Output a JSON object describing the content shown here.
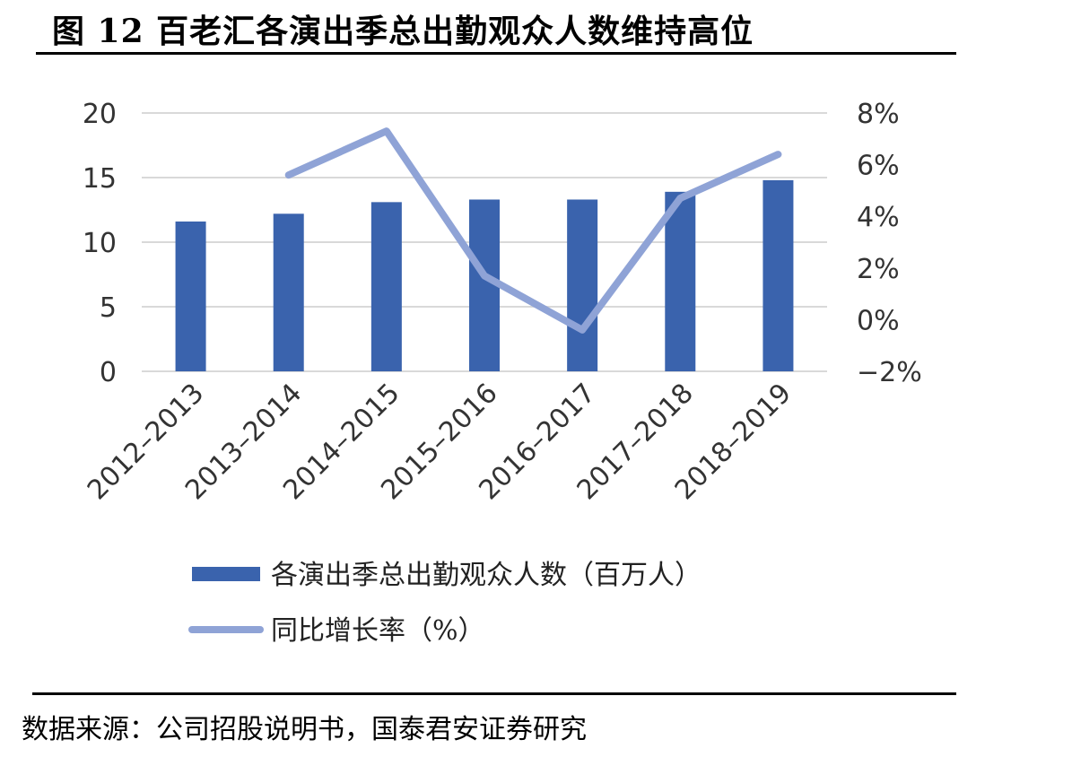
{
  "figure": {
    "title": "图 12 百老汇各演出季总出勤观众人数维持高位",
    "source": "数据来源：公司招股说明书，国泰君安证券研究"
  },
  "colors": {
    "bar": "#3A63AD",
    "line": "#8FA3D6",
    "grid": "#D9D9D9"
  },
  "chart_data": {
    "type": "bar",
    "categories": [
      "2012–2013",
      "2013–2014",
      "2014–2015",
      "2015–2016",
      "2016–2017",
      "2017–2018",
      "2018–2019"
    ],
    "series": [
      {
        "name": "各演出季总出勤观众人数（百万人）",
        "type": "bar",
        "axis": "left",
        "values": [
          11.6,
          12.2,
          13.1,
          13.3,
          13.3,
          13.9,
          14.8
        ]
      },
      {
        "name": "同比增长率（%）",
        "type": "line",
        "axis": "right",
        "values": [
          null,
          5.6,
          7.3,
          1.7,
          -0.4,
          4.7,
          6.4
        ]
      }
    ],
    "y_left": {
      "ylim": [
        0,
        20
      ],
      "ticks": [
        0,
        5,
        10,
        15,
        20
      ],
      "tick_labels": [
        "0",
        "5",
        "10",
        "15",
        "20"
      ]
    },
    "y_right": {
      "ylim": [
        -2,
        8
      ],
      "ticks": [
        -2,
        0,
        2,
        4,
        6,
        8
      ],
      "tick_labels": [
        "−2%",
        "0%",
        "2%",
        "4%",
        "6%",
        "8%"
      ]
    },
    "grid": true,
    "legend_position": "bottom"
  }
}
